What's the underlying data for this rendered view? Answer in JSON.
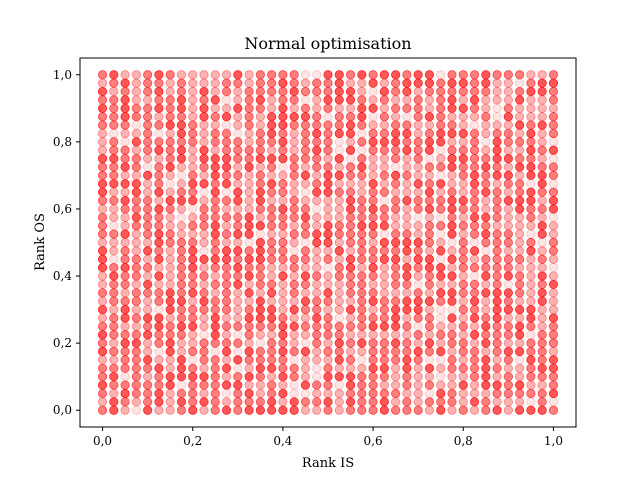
{
  "chart_data": {
    "type": "scatter",
    "title": "Normal optimisation",
    "xlabel": "Rank IS",
    "ylabel": "Rank OS",
    "xlim": [
      -0.05,
      1.05
    ],
    "ylim": [
      -0.05,
      1.05
    ],
    "xticks": [
      0.0,
      0.2,
      0.4,
      0.6,
      0.8,
      1.0
    ],
    "yticks": [
      0.0,
      0.2,
      0.4,
      0.6,
      0.8,
      1.0
    ],
    "xtick_labels": [
      "0,0",
      "0,2",
      "0,4",
      "0,6",
      "0,8",
      "1,0"
    ],
    "ytick_labels": [
      "0,0",
      "0,2",
      "0,4",
      "0,6",
      "0,8",
      "1,0"
    ],
    "grid": false,
    "legend": "none",
    "marker_color": "#ff0000",
    "marker_alpha": 0.3,
    "series": [
      {
        "x_levels": [
          0.0,
          0.025,
          0.05,
          0.075,
          0.1,
          0.125,
          0.15,
          0.175,
          0.2,
          0.225,
          0.25,
          0.275,
          0.3,
          0.325,
          0.35,
          0.375,
          0.4,
          0.425,
          0.45,
          0.475,
          0.5,
          0.525,
          0.55,
          0.575,
          0.6,
          0.625,
          0.65,
          0.675,
          0.7,
          0.725,
          0.75,
          0.775,
          0.8,
          0.825,
          0.85,
          0.875,
          0.9,
          0.925,
          0.95,
          0.975,
          1.0
        ],
        "y_levels": [
          0.0,
          0.025,
          0.05,
          0.075,
          0.1,
          0.125,
          0.15,
          0.175,
          0.2,
          0.225,
          0.25,
          0.275,
          0.3,
          0.325,
          0.35,
          0.375,
          0.4,
          0.425,
          0.45,
          0.475,
          0.5,
          0.525,
          0.55,
          0.575,
          0.6,
          0.625,
          0.65,
          0.675,
          0.7,
          0.725,
          0.75,
          0.775,
          0.8,
          0.825,
          0.85,
          0.875,
          0.9,
          0.925,
          0.95,
          0.975,
          1.0
        ]
      }
    ]
  }
}
